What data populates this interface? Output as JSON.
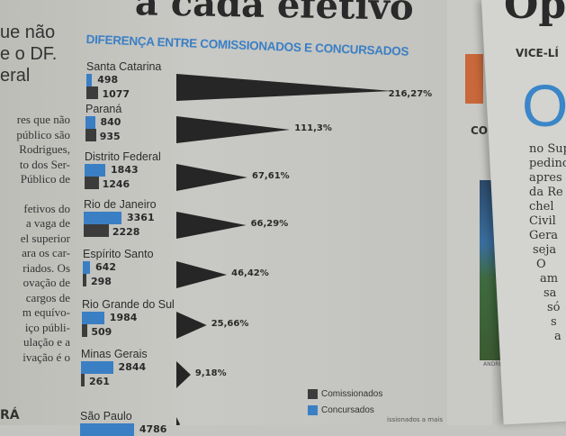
{
  "page": {
    "headline": "a cada efetivo",
    "left_headline": [
      "ue não",
      "e o DF.",
      "eral"
    ],
    "left_body": [
      "res que não",
      "público são",
      "Rodrigues,",
      "to dos Ser-",
      "Público de",
      "",
      "fetivos do",
      "a vaga de",
      "el superior",
      "ara os car-",
      "riados. Os",
      "ovação de",
      "cargos de",
      "m equívo-",
      "iço públi-",
      "ulação e a",
      "ivação é o"
    ],
    "left_footer": "RÁ",
    "right_top": "Op",
    "right_section": "VICE-LÍ",
    "right_drop_cap": "O",
    "right_body": [
      "no Sup",
      "pedino",
      "apres",
      "da Re",
      "chel",
      "Civil",
      "Gera",
      "seja",
      "O",
      "am",
      "sa",
      "só",
      "s",
      "a"
    ],
    "mid_label": "CON",
    "photo_credit": "ANDRÉ",
    "footnote": "issionados a mais"
  },
  "chart_data": {
    "type": "bar",
    "title": "DIFERENÇA ENTRE COMISSIONADOS E CONCURSADOS",
    "categories": [
      "Santa Catarina",
      "Paraná",
      "Distrito Federal",
      "Rio de Janeiro",
      "Espírito Santo",
      "Rio Grande do Sul",
      "Minas Gerais",
      "São Paulo"
    ],
    "series": [
      {
        "name": "Concursados",
        "color": "#3a7fc4",
        "values": [
          498,
          840,
          1843,
          3361,
          642,
          1984,
          2844,
          4786
        ],
        "labels": [
          "498",
          "840",
          "1843",
          "3361",
          "642",
          "1984",
          "2844",
          "4786"
        ]
      },
      {
        "name": "Comissionados",
        "color": "#3c3c3c",
        "values": [
          1077,
          935,
          1246,
          2228,
          298,
          509,
          261,
          null
        ],
        "labels": [
          "1077",
          "935",
          "1246",
          "2228",
          "298",
          "509",
          "261",
          ""
        ]
      }
    ],
    "difference_pct": [
      216.27,
      111.3,
      67.61,
      66.29,
      46.42,
      25.66,
      9.18,
      null
    ],
    "difference_labels": [
      "216,27%",
      "111,3%",
      "67,61%",
      "66,29%",
      "46,42%",
      "25,66%",
      "9,18%",
      ""
    ],
    "legend": [
      "Comissionados",
      "Concursados"
    ],
    "legend_position": "bottom-right"
  }
}
